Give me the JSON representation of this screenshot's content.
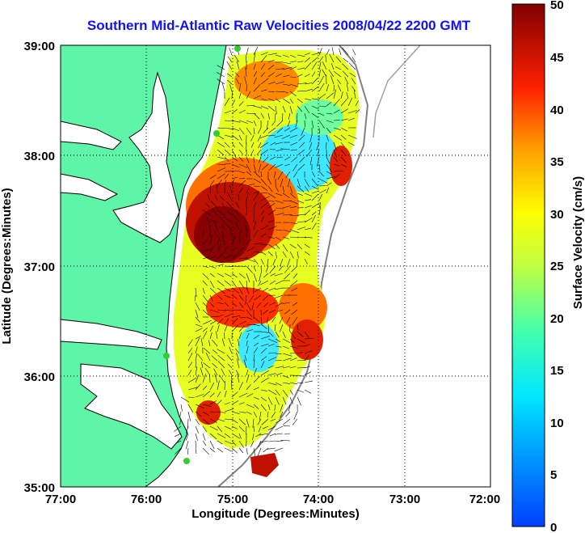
{
  "title": "Southern Mid-Atlantic Raw Velocities 2008/04/22 2200 GMT",
  "map": {
    "xlabel": "Longitude (Degrees:Minutes)",
    "ylabel": "Latitude (Degrees:Minutes)",
    "lon_ticks": [
      "77:00",
      "76:00",
      "75:00",
      "74:00",
      "73:00",
      "72:00"
    ],
    "lat_ticks": [
      "39:00",
      "38:00",
      "37:00",
      "36:00",
      "35:00"
    ],
    "lon_range": [
      -77,
      -72
    ],
    "lat_range": [
      35,
      39
    ],
    "grid": true,
    "land_color": "#5ef5a8",
    "coastline_color": "#000000",
    "bathymetry_color": "#808080",
    "station_color": "#33cc33"
  },
  "colorbar": {
    "label": "Surface Velocity (cm/s)",
    "ticks": [
      "50",
      "45",
      "40",
      "35",
      "30",
      "25",
      "20",
      "15",
      "10",
      "5",
      "0"
    ],
    "range": [
      0,
      50
    ],
    "colormap": "jet"
  }
}
